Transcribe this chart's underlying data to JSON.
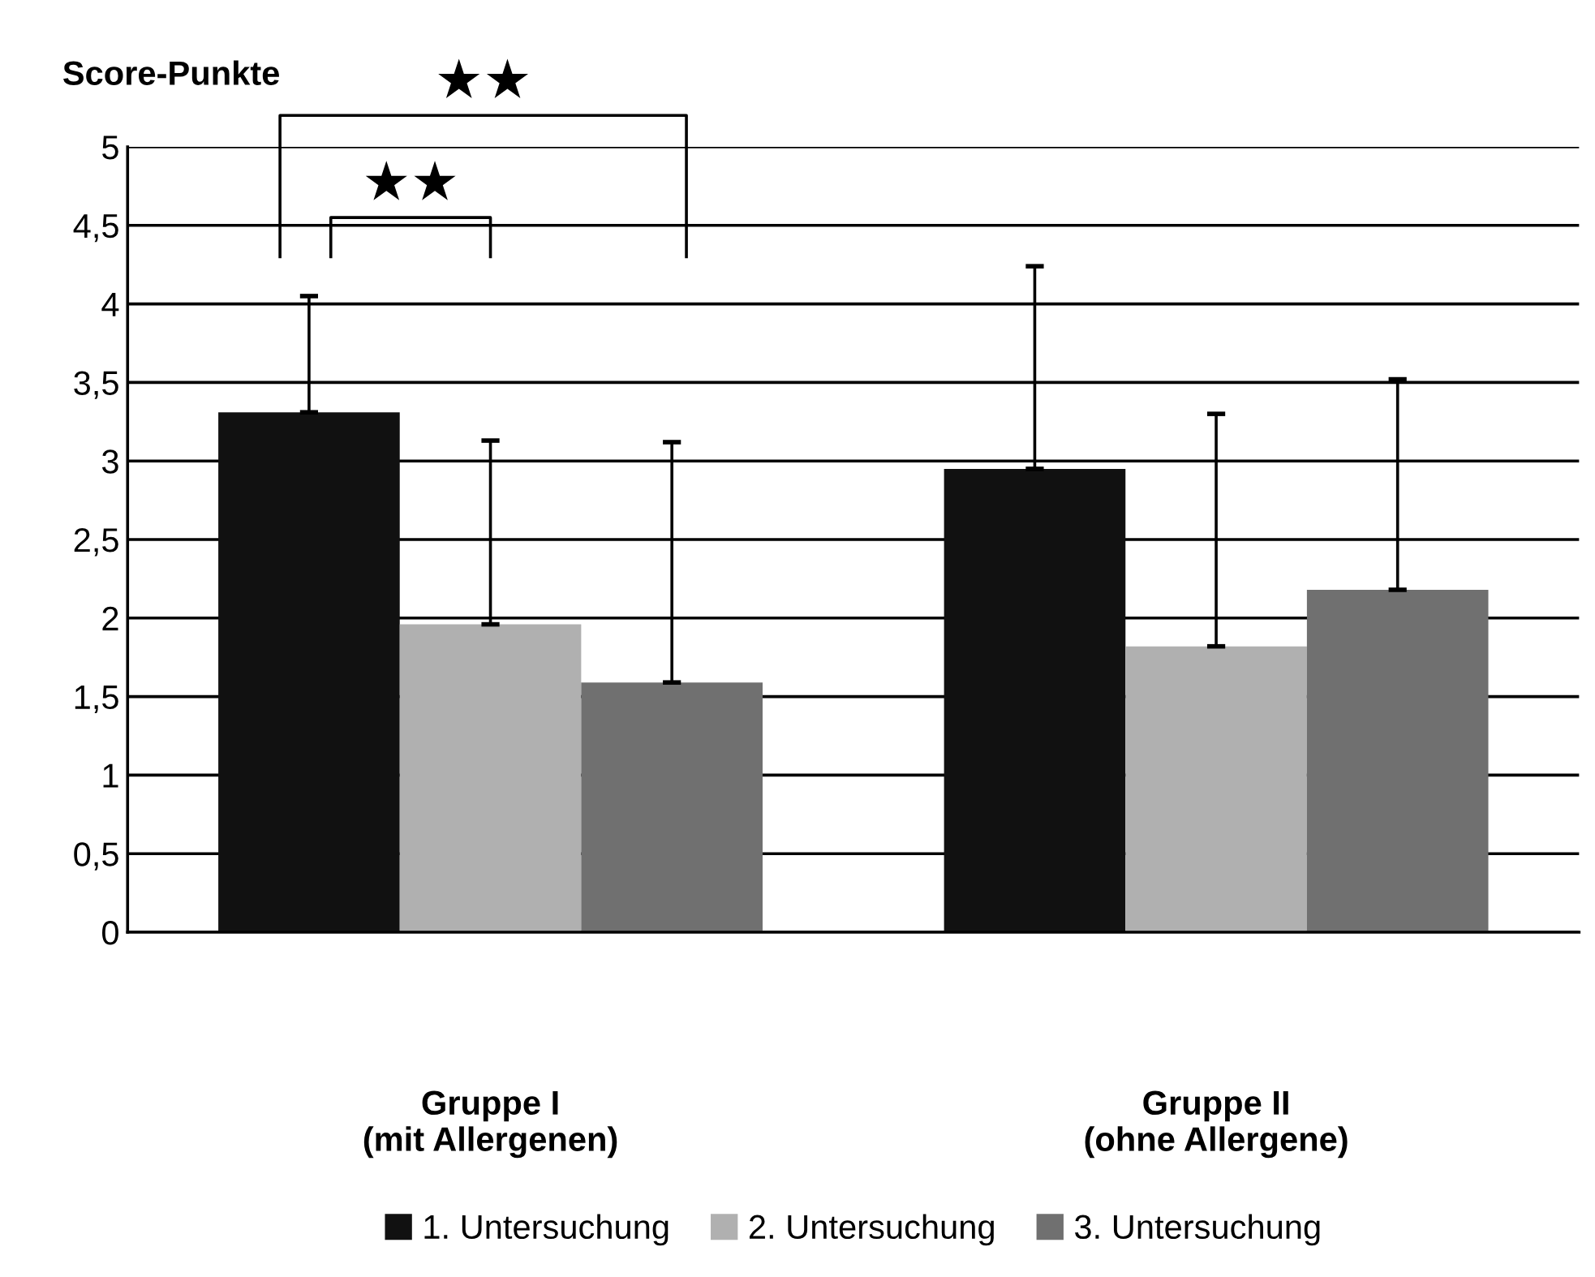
{
  "chart_data": {
    "type": "bar",
    "ylabel": "Score-Punkte",
    "categories": [
      "Gruppe I\n(mit Allergenen)",
      "Gruppe II\n(ohne Allergene)"
    ],
    "series": [
      {
        "name": "1. Untersuchung",
        "color": "#111111",
        "values": [
          3.31,
          2.95
        ],
        "errors": [
          [
            3.31,
            4.05
          ],
          [
            2.95,
            4.24
          ]
        ]
      },
      {
        "name": "2. Untersuchung",
        "color": "#b0b0b0",
        "values": [
          1.96,
          1.82
        ],
        "errors": [
          [
            1.96,
            3.13
          ],
          [
            1.82,
            3.3
          ]
        ]
      },
      {
        "name": "3. Untersuchung",
        "color": "#707070",
        "values": [
          1.59,
          2.18
        ],
        "errors": [
          [
            1.59,
            3.12
          ],
          [
            2.18,
            3.52
          ]
        ]
      }
    ],
    "ylim": [
      0,
      5
    ],
    "yticks": [
      0,
      {
        "value": 0.5,
        "label": "0,5"
      },
      1,
      {
        "value": 1.5,
        "label": "1,5"
      },
      2,
      {
        "value": 2.5,
        "label": "2,5"
      },
      3,
      {
        "value": 3.5,
        "label": "3,5"
      },
      4,
      {
        "value": 4.5,
        "label": "4,5"
      },
      5
    ],
    "annotations": [
      "★★",
      "★★"
    ],
    "grid": "y",
    "legend": "bottom"
  }
}
